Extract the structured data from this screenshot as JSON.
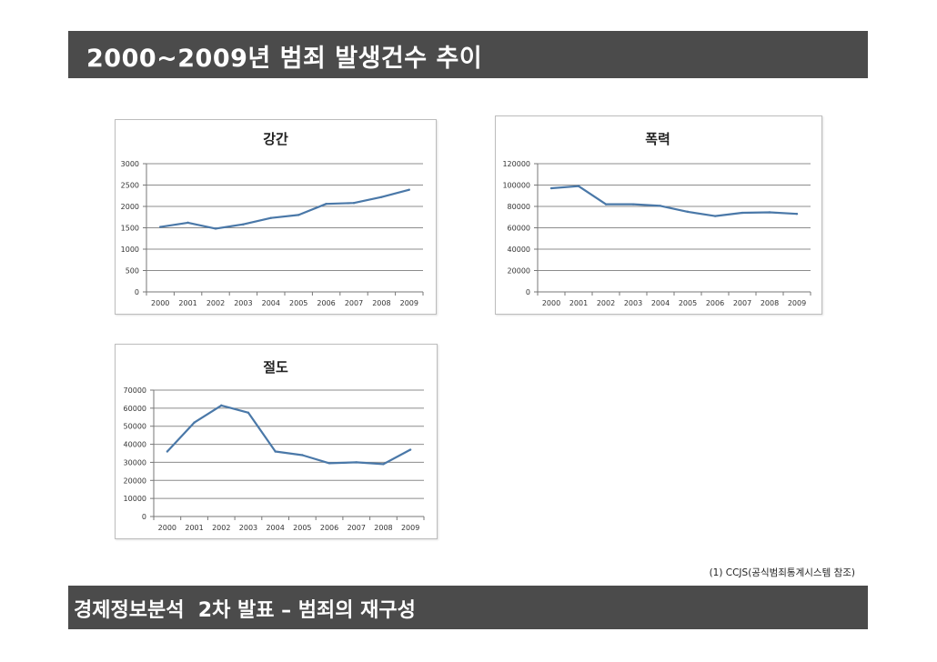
{
  "header": {
    "title": "2000~2009년 범죄 발생건수 추이"
  },
  "note": "(1) CCJS(공식범죄통계시스템 참조)",
  "footer": {
    "title": "경제정보분석  2차 발표 – 범죄의 재구성"
  },
  "colors": {
    "bar": "#4b4b4b",
    "line": "#4a78a8",
    "grid": "#8c8c8c"
  },
  "chart_data": [
    {
      "type": "line",
      "title": "강간",
      "categories": [
        "2000",
        "2001",
        "2002",
        "2003",
        "2004",
        "2005",
        "2006",
        "2007",
        "2008",
        "2009"
      ],
      "values": [
        1520,
        1620,
        1480,
        1580,
        1730,
        1800,
        2060,
        2080,
        2220,
        2390
      ],
      "ylim": [
        0,
        3000
      ],
      "yticks": [
        "0",
        "500",
        "1000",
        "1500",
        "2000",
        "2500",
        "3000"
      ],
      "xlabel": "",
      "ylabel": "",
      "grid": true,
      "legend": "none"
    },
    {
      "type": "line",
      "title": "폭력",
      "categories": [
        "2000",
        "2001",
        "2002",
        "2003",
        "2004",
        "2005",
        "2006",
        "2007",
        "2008",
        "2009"
      ],
      "values": [
        97000,
        99000,
        82000,
        82000,
        80500,
        75000,
        71000,
        74000,
        74500,
        73000
      ],
      "ylim": [
        0,
        120000
      ],
      "yticks": [
        "0",
        "20000",
        "40000",
        "60000",
        "80000",
        "100000",
        "120000"
      ],
      "xlabel": "",
      "ylabel": "",
      "grid": true,
      "legend": "none"
    },
    {
      "type": "line",
      "title": "절도",
      "categories": [
        "2000",
        "2001",
        "2002",
        "2003",
        "2004",
        "2005",
        "2006",
        "2007",
        "2008",
        "2009"
      ],
      "values": [
        36000,
        52000,
        61500,
        57500,
        36000,
        34000,
        29500,
        30000,
        29000,
        37000
      ],
      "ylim": [
        0,
        70000
      ],
      "yticks": [
        "0",
        "10000",
        "20000",
        "30000",
        "40000",
        "50000",
        "60000",
        "70000"
      ],
      "xlabel": "",
      "ylabel": "",
      "grid": true,
      "legend": "none"
    }
  ]
}
